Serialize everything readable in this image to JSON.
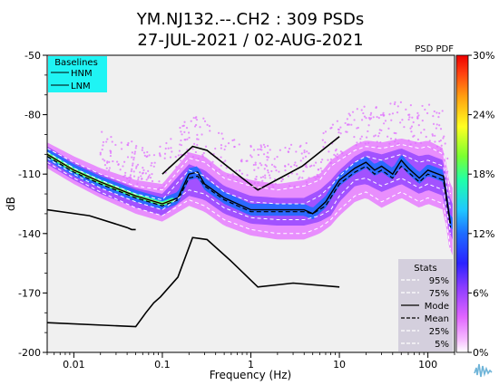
{
  "chart_data": {
    "type": "line",
    "title_line1": "YM.NJ132.--.CH2 : 309 PSDs",
    "title_line2": "27-JUL-2021 / 02-AUG-2021",
    "xlabel": "Frequency (Hz)",
    "ylabel": "dB",
    "x_scale": "log",
    "xlim": [
      0.005,
      200
    ],
    "ylim": [
      -200,
      -50
    ],
    "x_ticks": [
      {
        "v": 0.01,
        "label": "0.01"
      },
      {
        "v": 0.1,
        "label": "0.1"
      },
      {
        "v": 1,
        "label": "1"
      },
      {
        "v": 10,
        "label": "10"
      },
      {
        "v": 100,
        "label": "100"
      }
    ],
    "y_ticks": [
      {
        "v": -50,
        "label": "-50"
      },
      {
        "v": -80,
        "label": "-80"
      },
      {
        "v": -110,
        "label": "-110"
      },
      {
        "v": -140,
        "label": "-140"
      },
      {
        "v": -170,
        "label": "-170"
      },
      {
        "v": -200,
        "label": "-200"
      }
    ],
    "baselines_legend": {
      "title": "Baselines",
      "items": [
        "HNM",
        "LNM"
      ],
      "bg_color": "#1ff4f4"
    },
    "stats_legend": {
      "title": "Stats",
      "items": [
        {
          "label": "95%",
          "style": "white-dash"
        },
        {
          "label": "75%",
          "style": "white-dash"
        },
        {
          "label": "Mode",
          "style": "black-solid"
        },
        {
          "label": "Mean",
          "style": "black-dash"
        },
        {
          "label": "25%",
          "style": "white-dash"
        },
        {
          "label": "5%",
          "style": "white-dash"
        }
      ],
      "bg_color": "#d4cfdd"
    },
    "colorbar": {
      "title": "PSD PDF",
      "ticks": [
        {
          "v": 0,
          "label": "0%"
        },
        {
          "v": 6,
          "label": "6%"
        },
        {
          "v": 12,
          "label": "12%"
        },
        {
          "v": 18,
          "label": "18%"
        },
        {
          "v": 24,
          "label": "24%"
        },
        {
          "v": 30,
          "label": "30%"
        }
      ],
      "range": [
        0,
        30
      ]
    },
    "series": [
      {
        "name": "HNM",
        "x": [
          0.1,
          0.22,
          0.32,
          0.8,
          1.2,
          3.8,
          10
        ],
        "y": [
          -110,
          -96,
          -98,
          -112,
          -118,
          -106,
          -91
        ]
      },
      {
        "name": "LNM",
        "x": [
          0.005,
          0.05,
          0.065,
          0.08,
          0.095,
          0.15,
          0.22,
          0.32,
          0.6,
          1.2,
          3,
          10
        ],
        "y": [
          -185,
          -187,
          -180,
          -175,
          -172,
          -162,
          -142,
          -143,
          -154,
          -167,
          -165,
          -167
        ]
      },
      {
        "name": "HNM-low",
        "x": [
          0.005,
          0.015,
          0.04,
          0.045,
          0.05
        ],
        "y": [
          -128,
          -131,
          -137,
          -138,
          -138
        ]
      },
      {
        "name": "Mode",
        "x": [
          0.005,
          0.01,
          0.02,
          0.05,
          0.1,
          0.15,
          0.2,
          0.25,
          0.3,
          0.5,
          1,
          2,
          4,
          5,
          7,
          10,
          15,
          20,
          25,
          30,
          40,
          50,
          60,
          80,
          100,
          150,
          180
        ],
        "y": [
          -100,
          -108,
          -114,
          -121,
          -125,
          -122,
          -110,
          -109,
          -115,
          -122,
          -128,
          -128,
          -128,
          -130,
          -124,
          -113,
          -107,
          -104,
          -108,
          -106,
          -110,
          -103,
          -107,
          -112,
          -108,
          -111,
          -135
        ]
      },
      {
        "name": "Mean",
        "x": [
          0.005,
          0.01,
          0.02,
          0.05,
          0.1,
          0.15,
          0.2,
          0.25,
          0.3,
          0.5,
          1,
          2,
          4,
          5,
          7,
          10,
          15,
          20,
          25,
          30,
          40,
          50,
          60,
          80,
          100,
          150,
          180
        ],
        "y": [
          -101,
          -109,
          -115,
          -122,
          -126,
          -123,
          -112,
          -111,
          -116,
          -123,
          -129,
          -129,
          -129,
          -130,
          -126,
          -115,
          -109,
          -106,
          -110,
          -108,
          -112,
          -106,
          -109,
          -114,
          -110,
          -113,
          -137
        ]
      },
      {
        "name": "95%",
        "x": [
          0.005,
          0.01,
          0.02,
          0.05,
          0.1,
          0.2,
          0.3,
          0.5,
          1,
          2,
          4,
          6,
          8,
          10,
          15,
          20,
          30,
          50,
          80,
          100,
          150,
          180
        ],
        "y": [
          -97,
          -104,
          -110,
          -116,
          -118,
          -102,
          -104,
          -112,
          -116,
          -118,
          -116,
          -113,
          -106,
          -103,
          -98,
          -96,
          -97,
          -95,
          -97,
          -96,
          -100,
          -120
        ]
      },
      {
        "name": "75%",
        "x": [
          0.005,
          0.01,
          0.02,
          0.05,
          0.1,
          0.2,
          0.3,
          0.5,
          1,
          2,
          4,
          6,
          8,
          10,
          15,
          20,
          30,
          50,
          80,
          100,
          150,
          180
        ],
        "y": [
          -99,
          -107,
          -113,
          -120,
          -123,
          -108,
          -111,
          -119,
          -124,
          -125,
          -125,
          -121,
          -116,
          -111,
          -104,
          -101,
          -103,
          -100,
          -104,
          -103,
          -106,
          -128
        ]
      },
      {
        "name": "25%",
        "x": [
          0.005,
          0.01,
          0.02,
          0.05,
          0.1,
          0.2,
          0.3,
          0.5,
          1,
          2,
          4,
          6,
          8,
          10,
          15,
          20,
          30,
          50,
          80,
          100,
          150,
          180
        ],
        "y": [
          -102,
          -110,
          -117,
          -124,
          -128,
          -118,
          -120,
          -127,
          -132,
          -133,
          -133,
          -131,
          -128,
          -121,
          -113,
          -112,
          -116,
          -112,
          -117,
          -115,
          -118,
          -140
        ]
      },
      {
        "name": "5%",
        "x": [
          0.005,
          0.01,
          0.02,
          0.05,
          0.1,
          0.2,
          0.3,
          0.5,
          1,
          2,
          4,
          6,
          8,
          10,
          15,
          20,
          30,
          50,
          80,
          100,
          150,
          180
        ],
        "y": [
          -104,
          -112,
          -119,
          -127,
          -131,
          -123,
          -126,
          -133,
          -138,
          -140,
          -140,
          -137,
          -133,
          -128,
          -121,
          -119,
          -124,
          -119,
          -124,
          -122,
          -125,
          -148
        ]
      }
    ]
  }
}
